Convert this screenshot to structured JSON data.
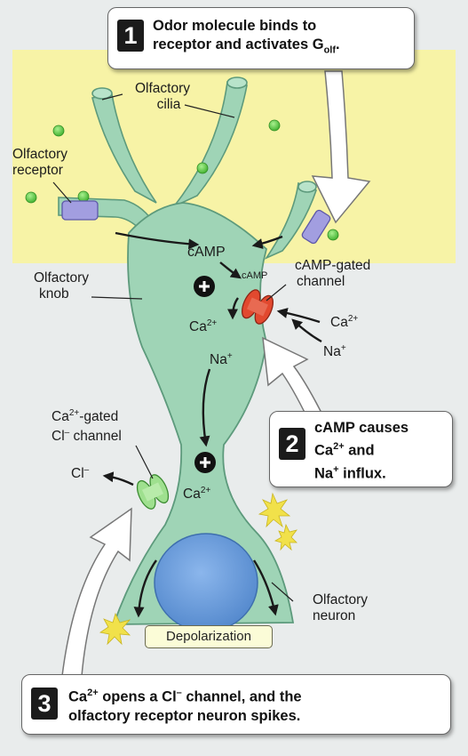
{
  "labels": {
    "olfactory": "Olfactory",
    "cilia": "cilia",
    "receptor": "receptor",
    "knob": "knob",
    "camp": "cAMP",
    "camp_small": "cAMP",
    "camp_gated": "cAMP-gated",
    "channel": "channel",
    "ca_left": "Ca",
    "na_mid": "Na",
    "ca_right": "Ca",
    "na_right": "Na",
    "ca_gated": "Ca",
    "ca_gated_suffix": "-gated",
    "cl_channel": "Cl",
    "cl_channel_suffix": " channel",
    "cl_ion": "Cl",
    "ca_lower": "Ca",
    "neuron": "neuron",
    "depolarization": "Depolarization"
  },
  "superscripts": {
    "ca": "2+",
    "na": "+",
    "cl": "–"
  },
  "steps": [
    {
      "number": "1",
      "line1": "Odor molecule binds to",
      "line2": "receptor and activates G",
      "line2_sub": "olf",
      "line2_end": "."
    },
    {
      "number": "2",
      "line1": "cAMP causes",
      "line2": "Ca",
      "line2_sup": "2+",
      "line2_end": " and",
      "line3": "Na",
      "line3_sup": "+",
      "line3_end": " influx."
    },
    {
      "number": "3",
      "line1a": "Ca",
      "line1_sup": "2+",
      "line1b": " opens a Cl",
      "line1_sup2": "–",
      "line1c": " channel, and the",
      "line2": "olfactory receptor neuron spikes."
    }
  ],
  "colors": {
    "mucus": "#f7f3a6",
    "neuron": "#9fd4b6",
    "neuron_outline": "#5d9a7c",
    "nucleus": "#5e93d6",
    "camp_channel": "#e2492f",
    "cl_channel": "#9fe08f",
    "receptor": "#a29ee0",
    "odorant": "#58c943"
  }
}
